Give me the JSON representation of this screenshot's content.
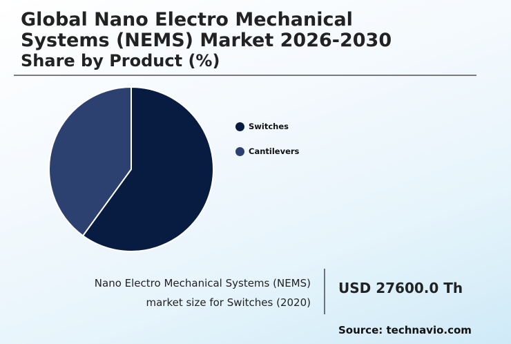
{
  "header": {
    "title_line1": "Global Nano Electro Mechanical",
    "title_line2": "Systems (NEMS) Market 2026-2030",
    "subtitle": "Share by Product (%)"
  },
  "legend": [
    {
      "label": "Switches",
      "color": "#081c42"
    },
    {
      "label": "Cantilevers",
      "color": "#2c416f"
    }
  ],
  "stat": {
    "desc_line1": "Nano Electro Mechanical Systems (NEMS)",
    "desc_line2": "market size for Switches (2020)",
    "value": "USD 27600.0 Th"
  },
  "source": "Source: technavio.com",
  "chart_data": {
    "type": "pie",
    "title": "Global Nano Electro Mechanical Systems (NEMS) Market 2026-2030",
    "subtitle": "Share by Product (%)",
    "categories": [
      "Switches",
      "Cantilevers"
    ],
    "values": [
      60,
      40
    ],
    "colors": [
      "#081c42",
      "#2c416f"
    ],
    "start_angle": "12 o'clock, clockwise",
    "legend_position": "right"
  }
}
